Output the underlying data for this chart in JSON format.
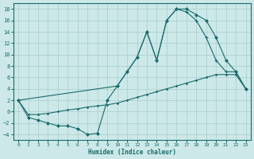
{
  "xlabel": "Humidex (Indice chaleur)",
  "bg_color": "#cce8e8",
  "grid_color": "#aacccc",
  "line_color": "#1a6b6b",
  "xlim": [
    -0.5,
    23.5
  ],
  "ylim": [
    -5,
    19
  ],
  "yticks": [
    -4,
    -2,
    0,
    2,
    4,
    6,
    8,
    10,
    12,
    14,
    16,
    18
  ],
  "xticks": [
    0,
    1,
    2,
    3,
    4,
    5,
    6,
    7,
    8,
    9,
    10,
    11,
    12,
    13,
    14,
    15,
    16,
    17,
    18,
    19,
    20,
    21,
    22,
    23
  ],
  "line1_x": [
    0,
    1,
    2,
    3,
    4,
    5,
    6,
    7,
    8,
    9,
    10,
    11,
    12,
    13,
    14,
    15,
    16,
    17,
    18,
    19,
    20,
    21,
    22,
    23
  ],
  "line1_y": [
    2,
    -1,
    -1.5,
    -2.0,
    -2.5,
    -2.5,
    -3.0,
    -4.0,
    -3.8,
    2.0,
    4.5,
    7.0,
    9.5,
    14.0,
    9.0,
    16.0,
    18.0,
    18.0,
    17.0,
    16.0,
    13.0,
    9.0,
    7.0,
    4.0
  ],
  "line2_x": [
    0,
    10,
    11,
    12,
    13,
    14,
    15,
    16,
    17,
    18,
    19,
    20,
    21,
    22,
    23
  ],
  "line2_y": [
    2,
    4.5,
    7.0,
    9.5,
    14.0,
    9.0,
    16.0,
    18.0,
    17.5,
    16.0,
    13.0,
    9.0,
    7.0,
    7.0,
    4.0
  ],
  "line3_x": [
    0,
    1,
    2,
    3,
    4,
    5,
    6,
    7,
    8,
    9,
    10,
    11,
    12,
    13,
    14,
    15,
    16,
    17,
    18,
    19,
    20,
    21,
    22,
    23
  ],
  "line3_y": [
    2,
    -0.5,
    -0.5,
    -0.3,
    0.0,
    0.3,
    0.5,
    0.8,
    1.0,
    1.2,
    1.5,
    2.0,
    2.5,
    3.0,
    3.5,
    4.0,
    4.5,
    5.0,
    5.5,
    6.0,
    6.5,
    6.5,
    6.5,
    4.0
  ]
}
